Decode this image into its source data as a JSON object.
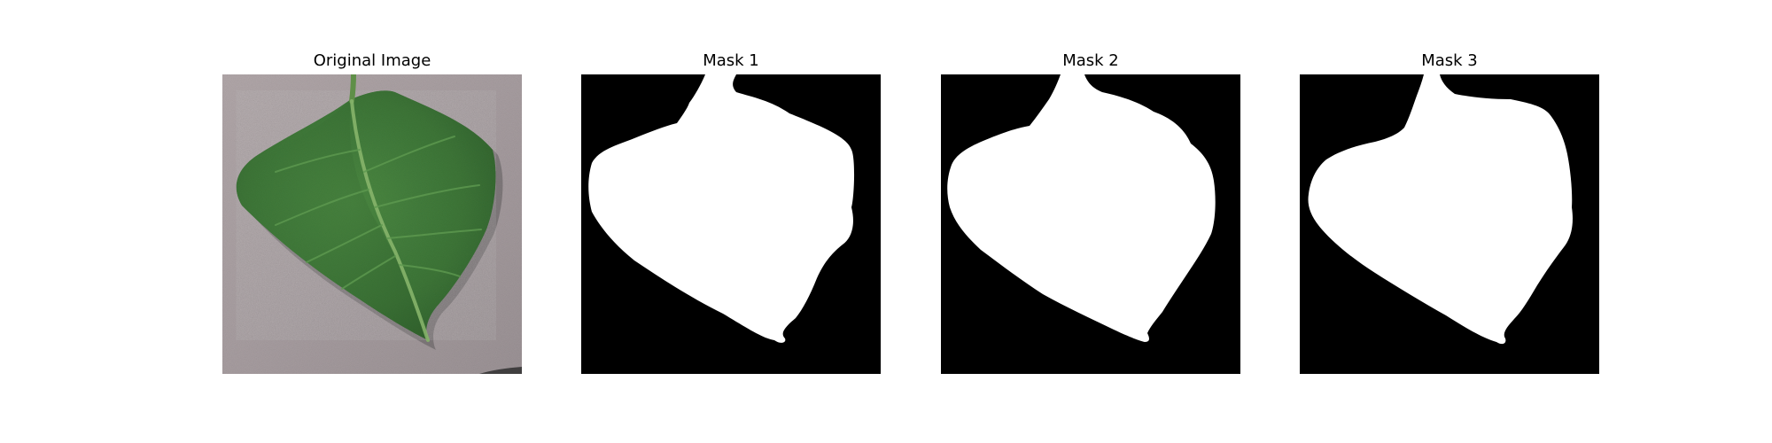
{
  "figure": {
    "panels": [
      {
        "title": "Original Image",
        "kind": "photo",
        "content": "green leaf on grey surface"
      },
      {
        "title": "Mask 1",
        "kind": "mask"
      },
      {
        "title": "Mask 2",
        "kind": "mask"
      },
      {
        "title": "Mask 3",
        "kind": "mask"
      }
    ]
  },
  "colors": {
    "background": "#ffffff",
    "mask_background": "#000000",
    "mask_foreground": "#ffffff",
    "leaf": "#3f7a38",
    "surface": "#aaa1a4"
  }
}
